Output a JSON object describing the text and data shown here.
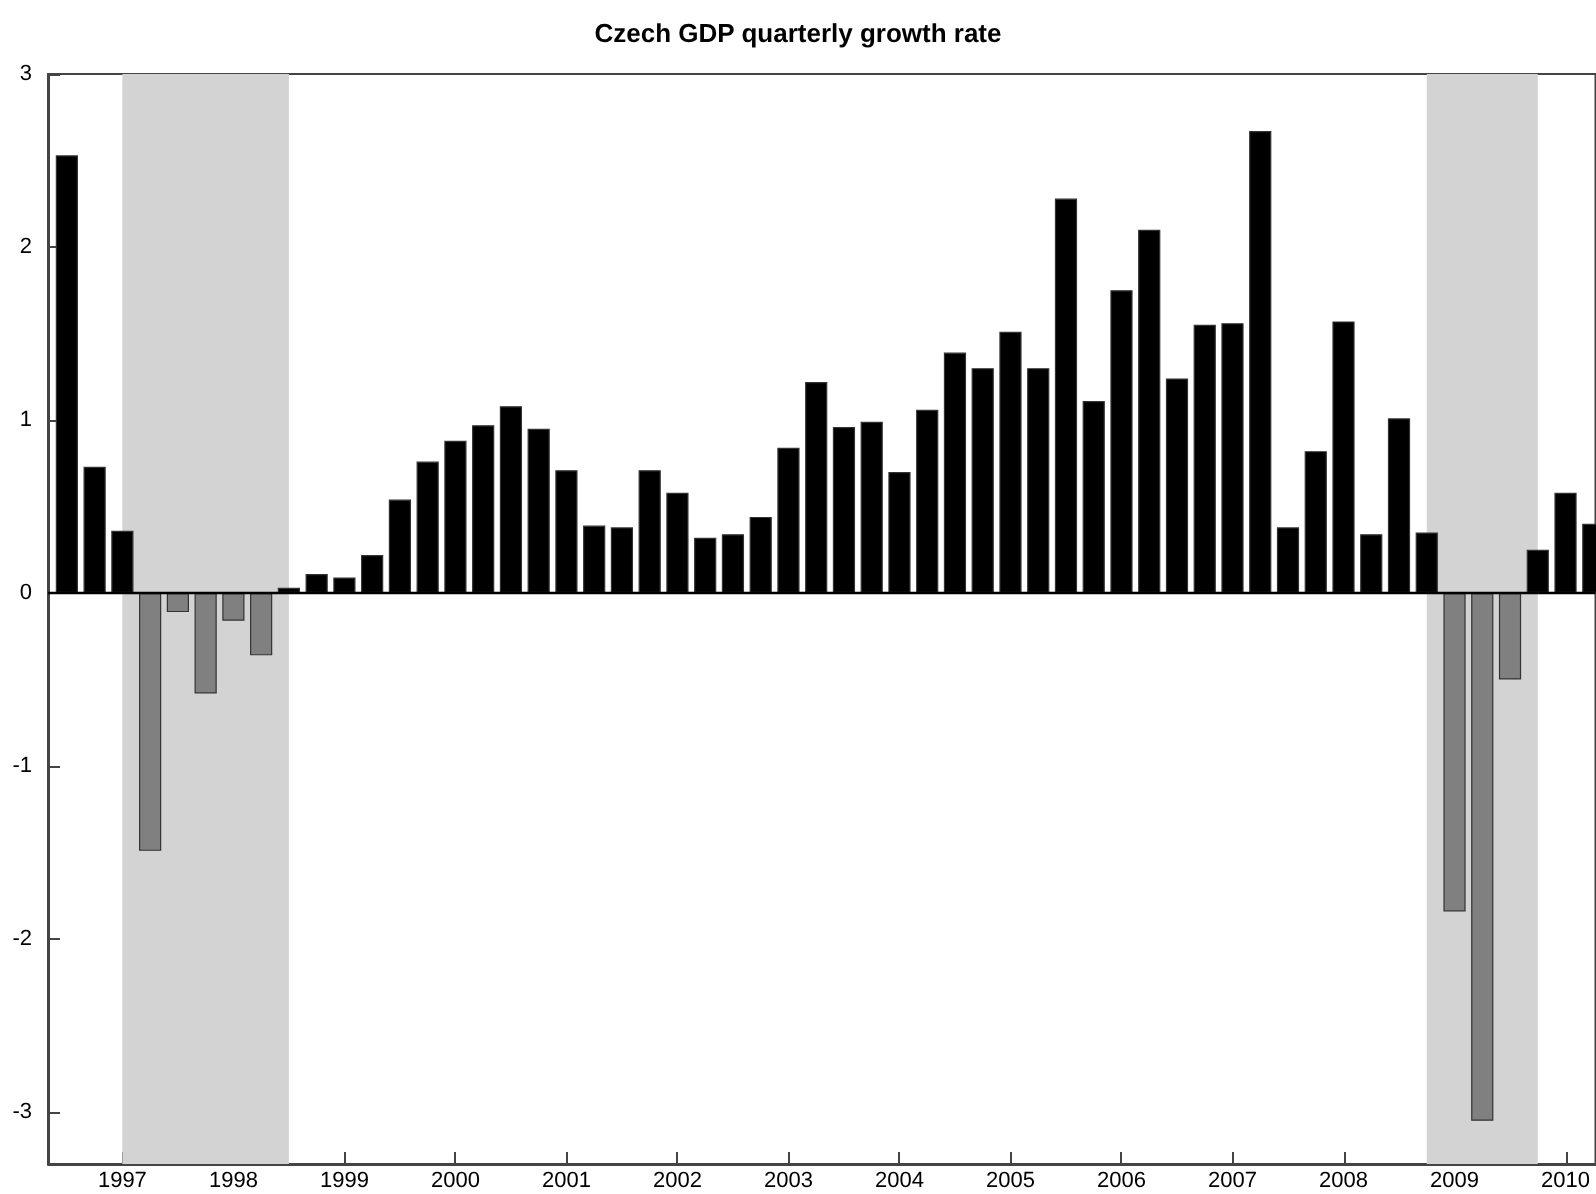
{
  "chart_data": {
    "type": "bar",
    "title": "Czech GDP quarterly growth rate",
    "x": [
      1996.5,
      1996.75,
      1997,
      1997.25,
      1997.5,
      1997.75,
      1998,
      1998.25,
      1998.5,
      1998.75,
      1999,
      1999.25,
      1999.5,
      1999.75,
      2000,
      2000.25,
      2000.5,
      2000.75,
      2001,
      2001.25,
      2001.5,
      2001.75,
      2002,
      2002.25,
      2002.5,
      2002.75,
      2003,
      2003.25,
      2003.5,
      2003.75,
      2004,
      2004.25,
      2004.5,
      2004.75,
      2005,
      2005.25,
      2005.5,
      2005.75,
      2006,
      2006.25,
      2006.5,
      2006.75,
      2007,
      2007.25,
      2007.5,
      2007.75,
      2008,
      2008.25,
      2008.5,
      2008.75,
      2009,
      2009.25,
      2009.5,
      2009.75,
      2010,
      2010.25
    ],
    "values": [
      2.53,
      0.73,
      0.36,
      -1.49,
      -0.11,
      -0.58,
      -0.16,
      -0.36,
      0.03,
      0.11,
      0.09,
      0.22,
      0.54,
      0.76,
      0.88,
      0.97,
      1.08,
      0.95,
      0.71,
      0.39,
      0.38,
      0.71,
      0.58,
      0.32,
      0.34,
      0.44,
      0.84,
      1.22,
      0.96,
      0.99,
      0.7,
      1.06,
      1.39,
      1.3,
      1.51,
      1.3,
      2.28,
      1.11,
      1.75,
      2.1,
      1.24,
      1.55,
      1.56,
      2.67,
      0.38,
      0.82,
      1.57,
      0.34,
      1.01,
      0.35,
      -1.84,
      -3.05,
      -0.5,
      0.25,
      0.58,
      0.4
    ],
    "colors": [
      "#000000",
      "#000000",
      "#000000",
      "#808080",
      "#808080",
      "#808080",
      "#808080",
      "#808080",
      "#000000",
      "#000000",
      "#000000",
      "#000000",
      "#000000",
      "#000000",
      "#000000",
      "#000000",
      "#000000",
      "#000000",
      "#000000",
      "#000000",
      "#000000",
      "#000000",
      "#000000",
      "#000000",
      "#000000",
      "#000000",
      "#000000",
      "#000000",
      "#000000",
      "#000000",
      "#000000",
      "#000000",
      "#000000",
      "#000000",
      "#000000",
      "#000000",
      "#000000",
      "#000000",
      "#000000",
      "#000000",
      "#000000",
      "#000000",
      "#000000",
      "#000000",
      "#000000",
      "#000000",
      "#000000",
      "#000000",
      "#000000",
      "#000000",
      "#808080",
      "#808080",
      "#808080",
      "#000000",
      "#000000",
      "#000000"
    ],
    "xlim": [
      1996.33,
      2010.27
    ],
    "xticks": [
      1997,
      1998,
      1999,
      2000,
      2001,
      2002,
      2003,
      2004,
      2005,
      2006,
      2007,
      2008,
      2009,
      2010
    ],
    "ylim": [
      -3.3,
      3
    ],
    "yticks": [
      -3,
      -2,
      -1,
      0,
      1,
      2,
      3
    ],
    "bands": [
      {
        "axis": "x",
        "from": 1997,
        "to": 1998.5,
        "color": "#d3d3d3"
      },
      {
        "axis": "x",
        "from": 2008.75,
        "to": 2009.75,
        "color": "#d3d3d3"
      }
    ]
  }
}
